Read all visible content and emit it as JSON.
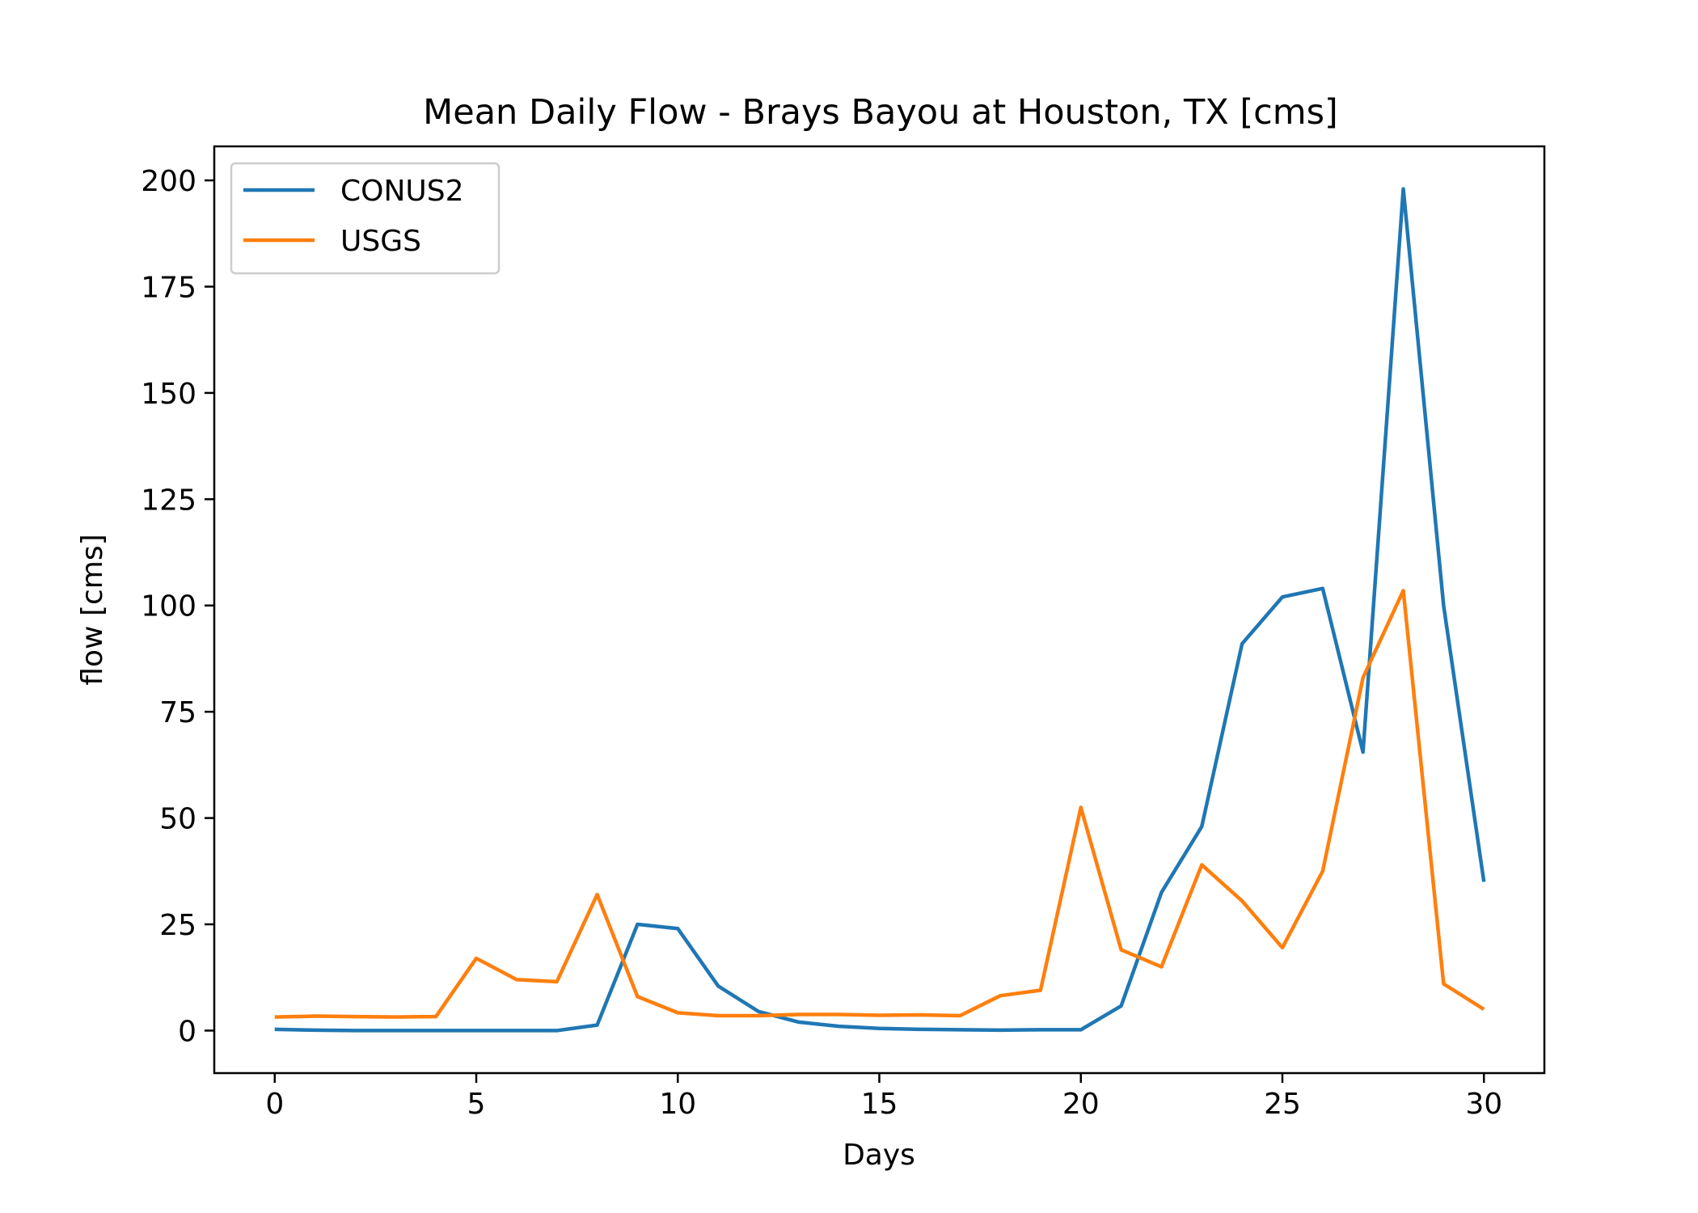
{
  "chart_data": {
    "type": "line",
    "title": "Mean Daily Flow - Brays Bayou at Houston, TX [cms]",
    "xlabel": "Days",
    "ylabel": "flow [cms]",
    "xlim": [
      -1.5,
      31.5
    ],
    "ylim": [
      -10,
      208
    ],
    "x_ticks": [
      0,
      5,
      10,
      15,
      20,
      25,
      30
    ],
    "y_ticks": [
      0,
      25,
      50,
      75,
      100,
      125,
      150,
      175,
      200
    ],
    "grid": false,
    "legend_position": "upper left",
    "x": [
      0,
      1,
      2,
      3,
      4,
      5,
      6,
      7,
      8,
      9,
      10,
      11,
      12,
      13,
      14,
      15,
      16,
      17,
      18,
      19,
      20,
      21,
      22,
      23,
      24,
      25,
      26,
      27,
      28,
      29,
      30
    ],
    "series": [
      {
        "name": "CONUS2",
        "color": "#1f77b4",
        "values": [
          0.3,
          0.1,
          0.0,
          0.0,
          0.0,
          0.0,
          0.0,
          0.0,
          1.3,
          25.0,
          24.0,
          10.5,
          4.5,
          2.0,
          1.0,
          0.5,
          0.3,
          0.2,
          0.1,
          0.2,
          0.2,
          5.8,
          32.5,
          48.0,
          91.0,
          102.0,
          104.0,
          65.5,
          198.0,
          100.0,
          35.0
        ]
      },
      {
        "name": "USGS",
        "color": "#ff7f0e",
        "values": [
          3.2,
          3.4,
          3.3,
          3.2,
          3.3,
          17.0,
          12.0,
          11.5,
          32.0,
          8.0,
          4.2,
          3.5,
          3.5,
          3.8,
          3.8,
          3.6,
          3.7,
          3.5,
          8.2,
          9.5,
          52.5,
          19.0,
          15.0,
          39.0,
          30.5,
          19.5,
          37.5,
          83.0,
          103.5,
          11.0,
          5.0
        ]
      }
    ]
  }
}
